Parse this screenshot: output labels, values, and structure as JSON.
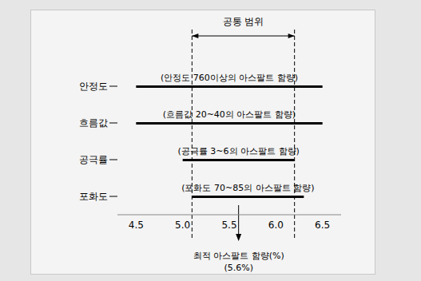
{
  "chart_data": {
    "type": "range_bar",
    "orientation": "horizontal",
    "categories": [
      "안정도",
      "흐름값",
      "공극률",
      "포화도"
    ],
    "starts": [
      4.5,
      4.5,
      5.0,
      5.1
    ],
    "ends": [
      6.5,
      6.5,
      6.2,
      6.3
    ],
    "annotations": [
      "(안정도 760이상의 아스팔트 함량)",
      "(흐름값 20~40의 아스팔트 함량)",
      "(공극률 3~6의 아스팔트 함량)",
      "(포화도 70~85의 아스팔트 함량)"
    ],
    "color": "#000000",
    "xlim": [
      4.3,
      6.7
    ],
    "xticks": [
      4.5,
      {
        "value": 5,
        "label": "5.0"
      },
      5.5,
      {
        "value": 6,
        "label": "6.0"
      },
      6.5
    ],
    "grid": false,
    "common_range": {
      "label": "공통 범위",
      "values": [
        5.1,
        6.2
      ]
    },
    "optimum": {
      "value": 5.6,
      "title": "최적 아스팔트 함량(%)",
      "label": "(5.6%)"
    }
  }
}
